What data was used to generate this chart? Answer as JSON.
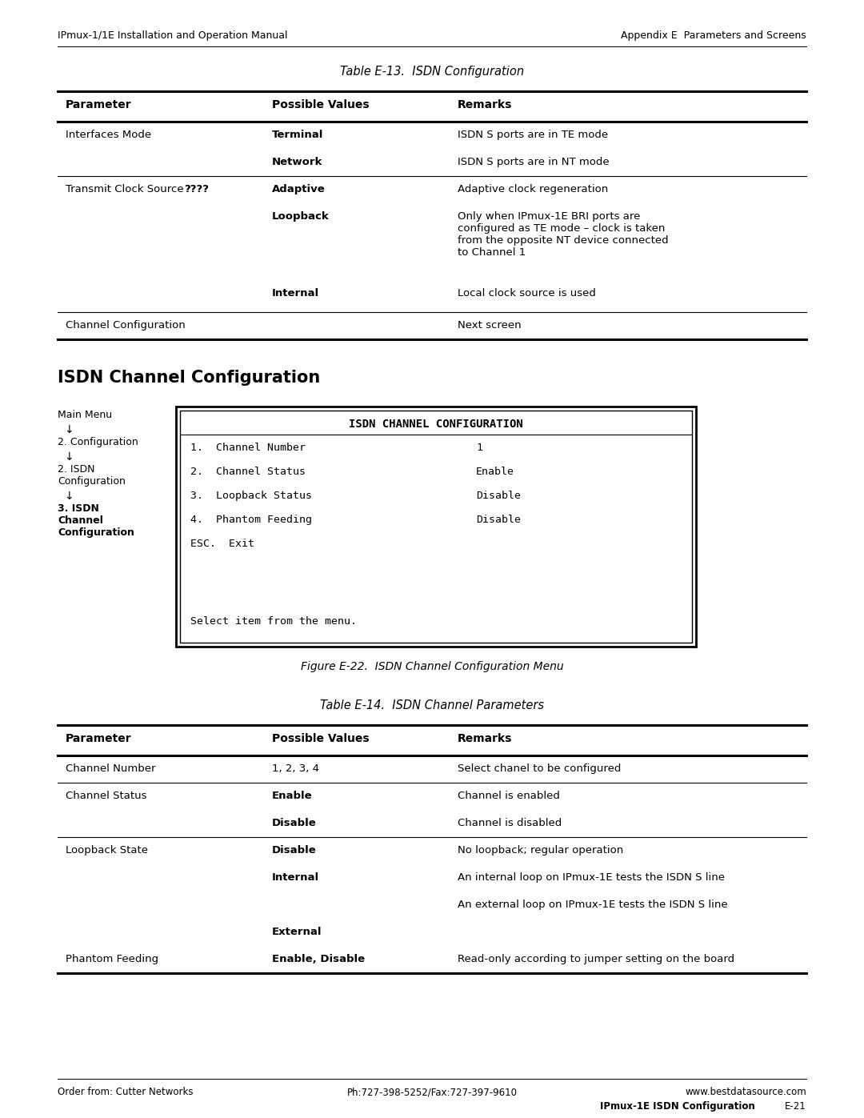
{
  "page_header_left": "IPmux-1/1E Installation and Operation Manual",
  "page_header_right": "Appendix E  Parameters and Screens",
  "page_footer_left": "Order from: Cutter Networks",
  "page_footer_center": "Ph:727-398-5252/Fax:727-397-9610",
  "page_footer_right": "www.bestdatasource.com",
  "page_footer_page": "IPmux-1E ISDN Configuration",
  "page_footer_pagenum": "E-21",
  "table13_title": "Table E-13.  ISDN Configuration",
  "table13_headers": [
    "Parameter",
    "Possible Values",
    "Remarks"
  ],
  "table13_rows": [
    [
      "Interfaces Mode",
      "Terminal",
      "ISDN S ports are in TE mode"
    ],
    [
      "",
      "Network",
      "ISDN S ports are in NT mode"
    ],
    [
      "Transmit Clock Source ????",
      "Adaptive",
      "Adaptive clock regeneration"
    ],
    [
      "",
      "Loopback",
      "Only when IPmux-1E BRI ports are\nconfigured as TE mode – clock is taken\nfrom the opposite NT device connected\nto Channel 1"
    ],
    [
      "",
      "Internal",
      "Local clock source is used"
    ],
    [
      "Channel Configuration",
      "",
      "Next screen"
    ]
  ],
  "table13_bold_values": [
    "Terminal",
    "Network",
    "Adaptive",
    "Loopback",
    "Internal"
  ],
  "section_title": "ISDN Channel Configuration",
  "nav_lines": [
    "Main Menu",
    "↓",
    "2. Configuration",
    "↓",
    "2. ISDN\nConfiguration",
    "↓",
    "3. ISDN\nChannel\nConfiguration"
  ],
  "screen_title": "ISDN CHANNEL CONFIGURATION",
  "screen_items": [
    [
      "1.  Channel Number",
      "1"
    ],
    [
      "2.  Channel Status",
      "Enable"
    ],
    [
      "3.  Loopback Status",
      "Disable"
    ],
    [
      "4.  Phantom Feeding",
      "Disable"
    ],
    [
      "ESC.  Exit",
      ""
    ]
  ],
  "screen_footer": "Select item from the menu.",
  "figure_caption": "Figure E-22.  ISDN Channel Configuration Menu",
  "table14_title": "Table E-14.  ISDN Channel Parameters",
  "table14_headers": [
    "Parameter",
    "Possible Values",
    "Remarks"
  ],
  "table14_rows": [
    [
      "Channel Number",
      "1, 2, 3, 4",
      "Select chanel to be configured"
    ],
    [
      "Channel Status",
      "Enable",
      "Channel is enabled"
    ],
    [
      "",
      "Disable",
      "Channel is disabled"
    ],
    [
      "Loopback State",
      "Disable",
      "No loopback; regular operation"
    ],
    [
      "",
      "Internal",
      "An internal loop on IPmux-1E tests the ISDN S line"
    ],
    [
      "",
      "",
      "An external loop on IPmux-1E tests the ISDN S line"
    ],
    [
      "",
      "External",
      ""
    ],
    [
      "Phantom Feeding",
      "Enable, Disable",
      "Read-only according to jumper setting on the board"
    ]
  ],
  "table14_bold_values": [
    "Enable",
    "Disable",
    "Internal",
    "External",
    "Enable, Disable"
  ],
  "table14_separators_after": [
    0,
    2,
    7
  ]
}
